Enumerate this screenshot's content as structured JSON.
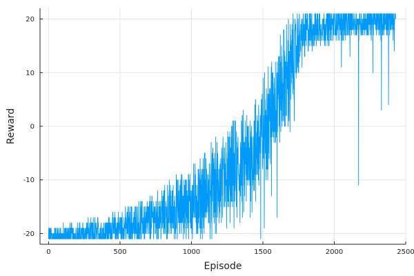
{
  "chart_data": {
    "type": "line",
    "title": "",
    "xlabel": "Episode",
    "ylabel": "Reward",
    "xlim": [
      -60,
      2500
    ],
    "ylim": [
      -22,
      22
    ],
    "xticks": [
      0,
      500,
      1000,
      1500,
      2000,
      2500
    ],
    "yticks": [
      -20,
      -10,
      0,
      10,
      20
    ],
    "xtick_labels": [
      "0",
      "500",
      "1000",
      "1500",
      "2000",
      "2500"
    ],
    "ytick_labels": [
      "-20",
      "-10",
      "0",
      "10",
      "20"
    ],
    "grid": true,
    "legend": "none",
    "series": [
      {
        "color": "#009AFA",
        "episodes": 2430,
        "trend": [
          [
            0,
            -20.7
          ],
          [
            100,
            -20.6
          ],
          [
            200,
            -20.3
          ],
          [
            300,
            -20.0
          ],
          [
            400,
            -19.6
          ],
          [
            500,
            -19.0
          ],
          [
            600,
            -18.4
          ],
          [
            700,
            -17.6
          ],
          [
            800,
            -16.6
          ],
          [
            900,
            -15.5
          ],
          [
            1000,
            -14.4
          ],
          [
            1100,
            -13.0
          ],
          [
            1200,
            -11.4
          ],
          [
            1300,
            -9.4
          ],
          [
            1400,
            -6.5
          ],
          [
            1450,
            -4.2
          ],
          [
            1500,
            -1.0
          ],
          [
            1550,
            2.5
          ],
          [
            1600,
            5.5
          ],
          [
            1650,
            8.0
          ],
          [
            1700,
            11.0
          ],
          [
            1750,
            15.5
          ],
          [
            1800,
            17.5
          ],
          [
            1900,
            18.6
          ],
          [
            2000,
            19.2
          ],
          [
            2100,
            19.4
          ],
          [
            2200,
            19.5
          ],
          [
            2300,
            19.6
          ],
          [
            2430,
            19.7
          ]
        ],
        "spikes": [
          [
            1485,
            -21.0
          ],
          [
            1510,
            -19.0
          ],
          [
            1560,
            -13.0
          ],
          [
            1600,
            -17.0
          ],
          [
            1450,
            -14.0
          ],
          [
            1690,
            -1.0
          ],
          [
            1720,
            1.0
          ],
          [
            2170,
            -11.0
          ],
          [
            2330,
            3.0
          ],
          [
            2380,
            4.0
          ],
          [
            2420,
            14.0
          ],
          [
            2110,
            13.0
          ],
          [
            2050,
            11.0
          ],
          [
            2270,
            10.0
          ]
        ]
      }
    ]
  }
}
